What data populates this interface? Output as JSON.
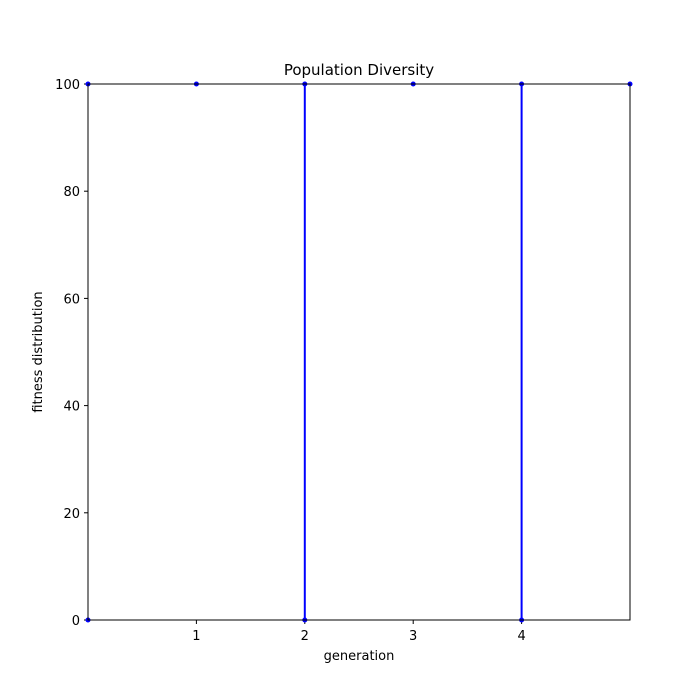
{
  "chart_data": {
    "type": "line",
    "title": "Population Diversity",
    "xlabel": "generation",
    "ylabel": "fitness distribution",
    "xlim": [
      0,
      5
    ],
    "ylim": [
      0,
      100
    ],
    "x_ticks": [
      1,
      2,
      3,
      4
    ],
    "x_tick_labels": [
      "1",
      "2",
      "3",
      "4"
    ],
    "y_ticks": [
      0,
      20,
      40,
      60,
      80,
      100
    ],
    "y_tick_labels": [
      "0",
      "20",
      "40",
      "60",
      "80",
      "100"
    ],
    "grid": false,
    "series": [
      {
        "color": "#0000ff",
        "marker": "point",
        "points": [
          {
            "x": 0,
            "y": 0
          },
          {
            "x": 0,
            "y": 100
          },
          {
            "x": 1,
            "y": 100
          },
          {
            "x": 2,
            "y": 100
          },
          {
            "x": 2,
            "y": 0
          },
          {
            "x": 3,
            "y": 100
          },
          {
            "x": 4,
            "y": 100
          },
          {
            "x": 4,
            "y": 0
          },
          {
            "x": 5,
            "y": 100
          }
        ],
        "vertical_lines": [
          {
            "x": 2,
            "y_from": 0,
            "y_to": 100
          },
          {
            "x": 4,
            "y_from": 0,
            "y_to": 100
          }
        ]
      }
    ]
  }
}
